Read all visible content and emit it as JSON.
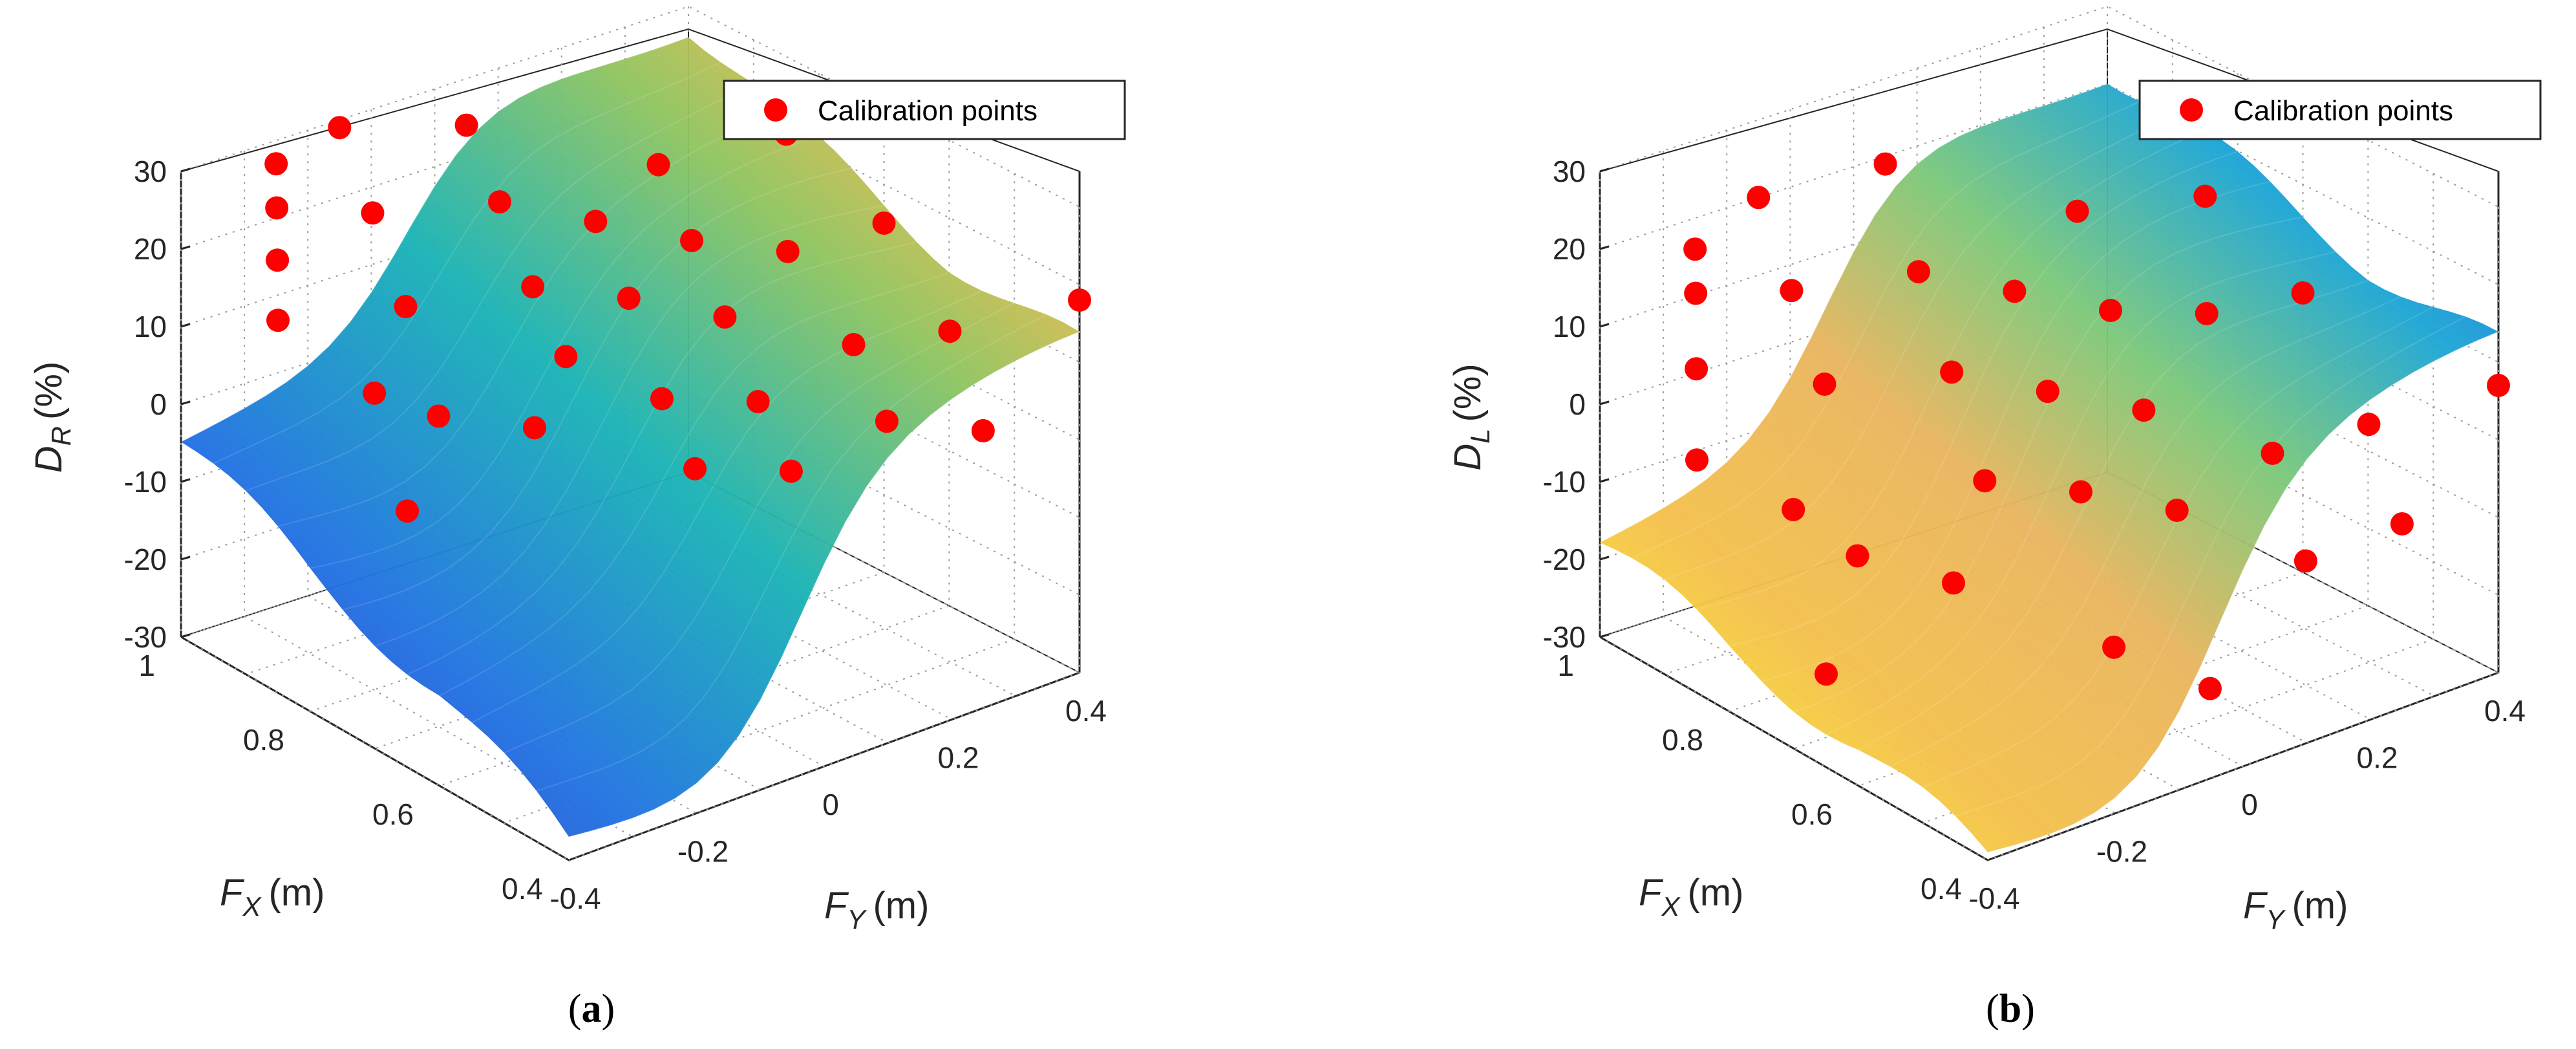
{
  "chart_data": [
    {
      "type": "surface3d",
      "panel_label": "(a)",
      "zlabel_base": "D",
      "zlabel_sub": "R",
      "zlabel_unit": "(%)",
      "xlabel_base": "F",
      "xlabel_sub": "X",
      "xlabel_unit": "(m)",
      "ylabel_base": "F",
      "ylabel_sub": "Y",
      "ylabel_unit": "(m)",
      "z_ticks": [
        "30",
        "20",
        "10",
        "0",
        "-10",
        "-20",
        "-30"
      ],
      "x_ticks": [
        "1",
        "0.8",
        "0.6",
        "0.4"
      ],
      "y_ticks": [
        "-0.4",
        "-0.2",
        "0",
        "0.2",
        "0.4"
      ],
      "zlim": [
        -30,
        30
      ],
      "xlim": [
        0.4,
        1.0
      ],
      "ylim": [
        -0.4,
        0.4
      ],
      "grid": "dotted",
      "legend": {
        "label": "Calibration points",
        "placement": "top-right"
      },
      "colormap": "parula",
      "surface_low_z": [
        -5,
        -12,
        -18,
        -28
      ],
      "surface_high_z": [
        28,
        20,
        15,
        12
      ],
      "calibration_points": [
        {
          "x": 0.85,
          "y": -0.4,
          "z": 18
        },
        {
          "x": 0.9,
          "y": -0.35,
          "z": 22
        },
        {
          "x": 0.95,
          "y": -0.3,
          "z": 25
        },
        {
          "x": 1.0,
          "y": -0.25,
          "z": 27
        },
        {
          "x": 1.0,
          "y": -0.15,
          "z": 29
        },
        {
          "x": 0.9,
          "y": -0.2,
          "z": 24
        },
        {
          "x": 0.8,
          "y": -0.25,
          "z": 18
        },
        {
          "x": 0.75,
          "y": -0.35,
          "z": 12
        },
        {
          "x": 0.7,
          "y": -0.3,
          "z": 10
        },
        {
          "x": 0.65,
          "y": -0.2,
          "z": 8
        },
        {
          "x": 0.7,
          "y": -0.1,
          "z": 12
        },
        {
          "x": 0.8,
          "y": -0.05,
          "z": 15
        },
        {
          "x": 0.9,
          "y": 0.0,
          "z": 20
        },
        {
          "x": 1.0,
          "y": 0.05,
          "z": 24
        },
        {
          "x": 0.85,
          "y": 0.1,
          "z": 17
        },
        {
          "x": 0.75,
          "y": 0.05,
          "z": 13
        },
        {
          "x": 0.65,
          "y": 0.0,
          "z": 6
        },
        {
          "x": 0.55,
          "y": -0.05,
          "z": 3
        },
        {
          "x": 0.5,
          "y": 0.05,
          "z": 2
        },
        {
          "x": 0.6,
          "y": 0.1,
          "z": 5
        },
        {
          "x": 0.7,
          "y": 0.15,
          "z": 10
        },
        {
          "x": 0.8,
          "y": 0.2,
          "z": 14
        },
        {
          "x": 0.9,
          "y": 0.25,
          "z": 18
        },
        {
          "x": 0.75,
          "y": 0.3,
          "z": 12
        },
        {
          "x": 0.6,
          "y": 0.25,
          "z": 8
        },
        {
          "x": 0.5,
          "y": 0.2,
          "z": 4
        },
        {
          "x": 0.45,
          "y": 0.3,
          "z": 2
        },
        {
          "x": 0.55,
          "y": 0.35,
          "z": 9
        },
        {
          "x": 0.7,
          "y": 0.4,
          "z": 15
        },
        {
          "x": 0.85,
          "y": 0.4,
          "z": 20
        },
        {
          "x": 0.4,
          "y": 0.4,
          "z": 18
        },
        {
          "x": 0.65,
          "y": -0.4,
          "z": 3
        }
      ]
    },
    {
      "type": "surface3d",
      "panel_label": "(b)",
      "zlabel_base": "D",
      "zlabel_sub": "L",
      "zlabel_unit": "(%)",
      "xlabel_base": "F",
      "xlabel_sub": "X",
      "xlabel_unit": "(m)",
      "ylabel_base": "F",
      "ylabel_sub": "Y",
      "ylabel_unit": "(m)",
      "z_ticks": [
        "30",
        "20",
        "10",
        "0",
        "-10",
        "-20",
        "-30"
      ],
      "x_ticks": [
        "1",
        "0.8",
        "0.6",
        "0.4"
      ],
      "y_ticks": [
        "-0.4",
        "-0.2",
        "0",
        "0.2",
        "0.4"
      ],
      "zlim": [
        -30,
        30
      ],
      "xlim": [
        0.4,
        1.0
      ],
      "ylim": [
        -0.4,
        0.4
      ],
      "grid": "dotted",
      "legend": {
        "label": "Calibration points",
        "placement": "top-right"
      },
      "colormap": "parula",
      "surface_low_z": [
        -18,
        -22,
        -25,
        -30
      ],
      "surface_high_z": [
        22,
        18,
        14,
        12
      ],
      "calibration_points": [
        {
          "x": 0.85,
          "y": -0.4,
          "z": 0
        },
        {
          "x": 0.9,
          "y": -0.35,
          "z": 8
        },
        {
          "x": 0.95,
          "y": -0.3,
          "z": 14
        },
        {
          "x": 1.0,
          "y": -0.25,
          "z": 16
        },
        {
          "x": 1.0,
          "y": -0.15,
          "z": 20
        },
        {
          "x": 0.9,
          "y": -0.2,
          "z": 14
        },
        {
          "x": 0.8,
          "y": -0.25,
          "z": 8
        },
        {
          "x": 0.75,
          "y": -0.35,
          "z": -3
        },
        {
          "x": 0.7,
          "y": -0.3,
          "z": -8
        },
        {
          "x": 0.65,
          "y": -0.2,
          "z": -12
        },
        {
          "x": 0.7,
          "y": -0.1,
          "z": -4
        },
        {
          "x": 0.8,
          "y": -0.05,
          "z": 4
        },
        {
          "x": 0.9,
          "y": 0.0,
          "z": 11
        },
        {
          "x": 1.0,
          "y": 0.05,
          "z": 19
        },
        {
          "x": 0.85,
          "y": 0.1,
          "z": 8
        },
        {
          "x": 0.75,
          "y": 0.05,
          "z": 1
        },
        {
          "x": 0.65,
          "y": 0.0,
          "z": -6
        },
        {
          "x": 0.55,
          "y": -0.05,
          "z": -20
        },
        {
          "x": 0.5,
          "y": 0.05,
          "z": -26
        },
        {
          "x": 0.6,
          "y": 0.1,
          "z": -9
        },
        {
          "x": 0.7,
          "y": 0.15,
          "z": -2
        },
        {
          "x": 0.8,
          "y": 0.2,
          "z": 5
        },
        {
          "x": 0.9,
          "y": 0.25,
          "z": 12
        },
        {
          "x": 0.75,
          "y": 0.3,
          "z": 4
        },
        {
          "x": 0.6,
          "y": 0.25,
          "z": -6
        },
        {
          "x": 0.5,
          "y": 0.2,
          "z": -14
        },
        {
          "x": 0.45,
          "y": 0.3,
          "z": -10
        },
        {
          "x": 0.55,
          "y": 0.35,
          "z": -3
        },
        {
          "x": 0.7,
          "y": 0.4,
          "z": 6
        },
        {
          "x": 0.85,
          "y": 0.4,
          "z": 12
        },
        {
          "x": 0.4,
          "y": 0.4,
          "z": 7
        },
        {
          "x": 0.65,
          "y": -0.4,
          "z": -18
        }
      ]
    }
  ]
}
